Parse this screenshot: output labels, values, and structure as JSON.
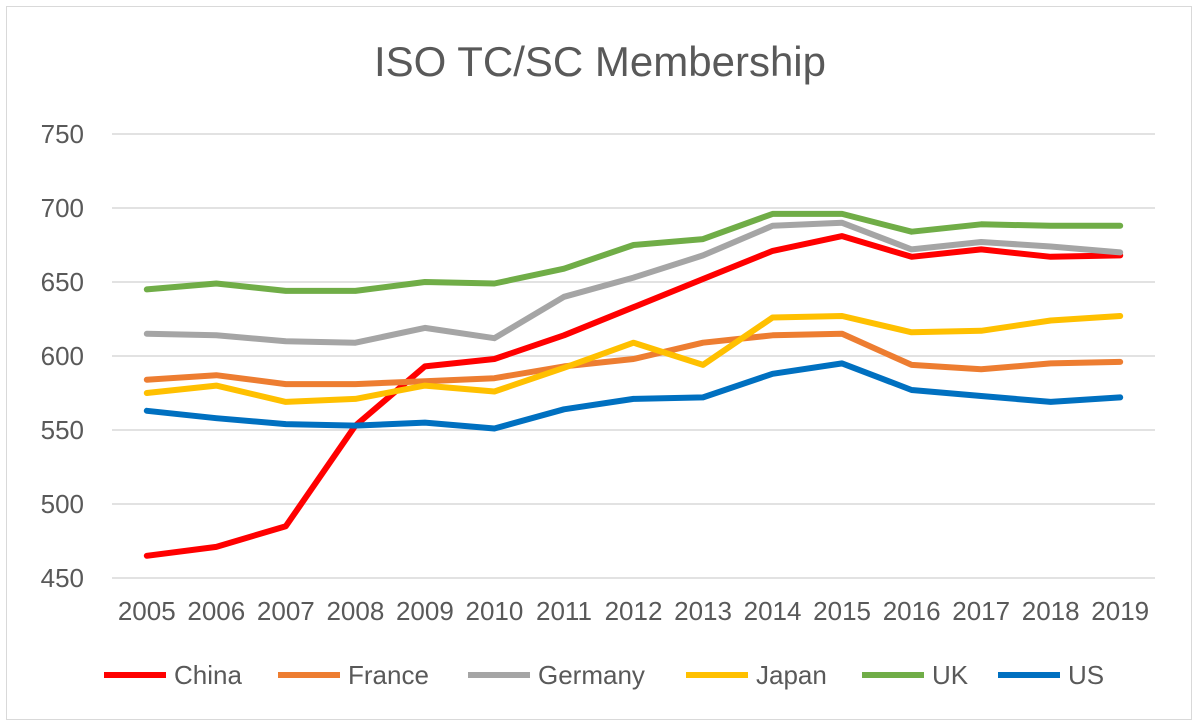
{
  "chart_data": {
    "type": "line",
    "title": "ISO TC/SC Membership",
    "xlabel": "",
    "ylabel": "",
    "x": [
      "2005",
      "2006",
      "2007",
      "2008",
      "2009",
      "2010",
      "2011",
      "2012",
      "2013",
      "2014",
      "2015",
      "2016",
      "2017",
      "2018",
      "2019"
    ],
    "ylim": [
      450,
      750
    ],
    "yticks": [
      450,
      500,
      550,
      600,
      650,
      700,
      750
    ],
    "grid": "horizontal",
    "legend": "bottom",
    "series": [
      {
        "name": "China",
        "color": "#ff0000",
        "values": [
          465,
          471,
          485,
          553,
          593,
          598,
          614,
          633,
          652,
          671,
          681,
          667,
          672,
          667,
          668
        ]
      },
      {
        "name": "France",
        "color": "#ed7d31",
        "values": [
          584,
          587,
          581,
          581,
          583,
          585,
          593,
          598,
          609,
          614,
          615,
          594,
          591,
          595,
          596
        ]
      },
      {
        "name": "Germany",
        "color": "#a5a5a5",
        "values": [
          615,
          614,
          610,
          609,
          619,
          612,
          640,
          653,
          668,
          688,
          690,
          672,
          677,
          674,
          670
        ]
      },
      {
        "name": "Japan",
        "color": "#ffc000",
        "values": [
          575,
          580,
          569,
          571,
          580,
          576,
          592,
          609,
          594,
          626,
          627,
          616,
          617,
          624,
          627
        ]
      },
      {
        "name": "UK",
        "color": "#70ad47",
        "values": [
          645,
          649,
          644,
          644,
          650,
          649,
          659,
          675,
          679,
          696,
          696,
          684,
          689,
          688,
          688
        ]
      },
      {
        "name": "US",
        "color": "#0070c0",
        "values": [
          563,
          558,
          554,
          553,
          555,
          551,
          564,
          571,
          572,
          588,
          595,
          577,
          573,
          569,
          572
        ]
      }
    ]
  }
}
